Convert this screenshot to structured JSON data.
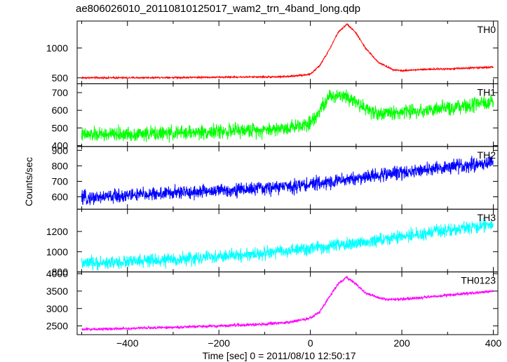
{
  "chart_data": {
    "type": "line",
    "title": "ae806026010_20110810125017_wam2_trn_4band_long.qdp",
    "xlabel": "Time [sec] 0 = 2011/08/10 12:50:17",
    "ylabel": "Counts/sec",
    "xlim": [
      -510,
      410
    ],
    "xticks": [
      -400,
      -200,
      0,
      200,
      400
    ],
    "grid": false,
    "panels": [
      {
        "name": "TH0",
        "color": "#ff0000",
        "ylim": [
          400,
          1450
        ],
        "yticks": [
          500,
          1000
        ],
        "noise": 12,
        "x": [
          -500,
          -400,
          -300,
          -200,
          -100,
          -50,
          0,
          20,
          40,
          60,
          80,
          100,
          120,
          150,
          180,
          200,
          250,
          300,
          350,
          400
        ],
        "y": [
          500,
          500,
          505,
          510,
          515,
          520,
          560,
          700,
          950,
          1250,
          1400,
          1250,
          1000,
          750,
          640,
          620,
          640,
          650,
          665,
          680
        ]
      },
      {
        "name": "TH1",
        "color": "#00ff00",
        "ylim": [
          395,
          750
        ],
        "yticks": [
          400,
          500,
          600,
          700
        ],
        "noise": 35,
        "x": [
          -500,
          -400,
          -300,
          -200,
          -100,
          -50,
          0,
          20,
          40,
          60,
          80,
          100,
          120,
          150,
          200,
          250,
          300,
          350,
          400
        ],
        "y": [
          460,
          465,
          470,
          480,
          490,
          500,
          530,
          600,
          670,
          690,
          680,
          650,
          610,
          580,
          590,
          600,
          610,
          625,
          645
        ]
      },
      {
        "name": "TH2",
        "color": "#0000ff",
        "ylim": [
          520,
          925
        ],
        "yticks": [
          600,
          700,
          800,
          900
        ],
        "noise": 38,
        "x": [
          -500,
          -400,
          -300,
          -200,
          -100,
          0,
          100,
          200,
          300,
          400
        ],
        "y": [
          590,
          610,
          625,
          640,
          655,
          680,
          720,
          760,
          790,
          825
        ]
      },
      {
        "name": "TH3",
        "color": "#00ffff",
        "ylim": [
          800,
          1420
        ],
        "yticks": [
          800,
          1000,
          1200
        ],
        "noise": 55,
        "x": [
          -500,
          -400,
          -300,
          -200,
          -100,
          0,
          100,
          200,
          300,
          400
        ],
        "y": [
          880,
          900,
          920,
          950,
          985,
          1030,
          1080,
          1150,
          1210,
          1270
        ]
      },
      {
        "name": "TH0123",
        "color": "#ff00ff",
        "ylim": [
          2250,
          4050
        ],
        "yticks": [
          2500,
          3000,
          3500,
          4000
        ],
        "noise": 35,
        "x": [
          -500,
          -400,
          -300,
          -200,
          -100,
          -50,
          0,
          20,
          40,
          60,
          80,
          100,
          120,
          150,
          180,
          200,
          250,
          300,
          350,
          400
        ],
        "y": [
          2400,
          2430,
          2460,
          2500,
          2550,
          2600,
          2720,
          2900,
          3300,
          3700,
          3900,
          3700,
          3450,
          3300,
          3250,
          3270,
          3320,
          3380,
          3440,
          3500
        ]
      }
    ]
  }
}
